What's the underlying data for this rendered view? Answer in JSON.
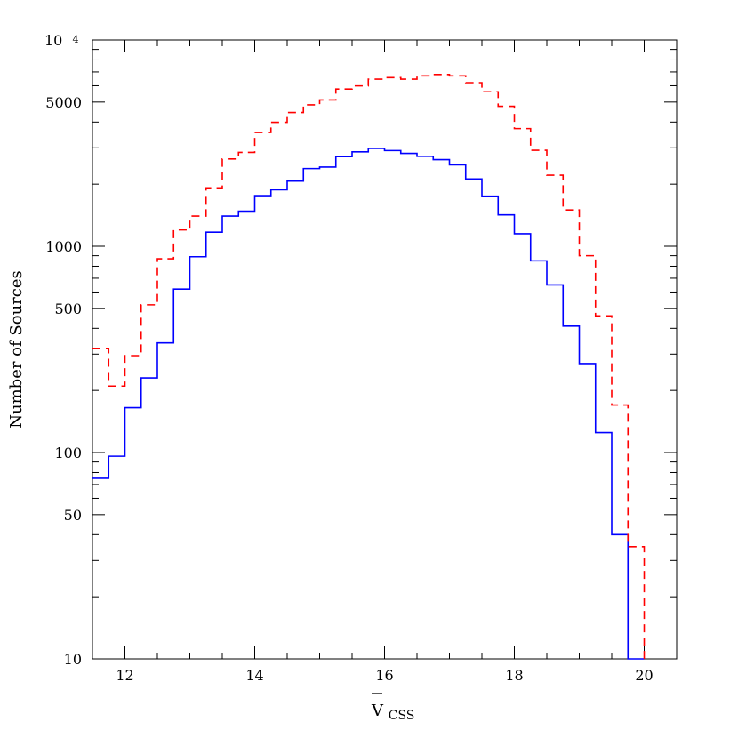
{
  "chart_data": {
    "type": "line",
    "step": true,
    "xlabel_main": "V",
    "xlabel_sub": "CSS",
    "xlabel_overline": true,
    "ylabel": "Number of Sources",
    "xlim": [
      11.5,
      20.5
    ],
    "ylim": [
      10,
      10000
    ],
    "yscale": "log",
    "x_ticks": [
      12,
      14,
      16,
      18,
      20
    ],
    "x_tick_labels": [
      "12",
      "14",
      "16",
      "18",
      "20"
    ],
    "y_ticks": [
      10,
      50,
      100,
      500,
      1000,
      5000
    ],
    "y_tick_labels": [
      "10",
      "50",
      "100",
      "500",
      "1000",
      "5000"
    ],
    "y_top_label_base": "10",
    "y_top_label_exp": "4",
    "x_bin_edges": [
      11.5,
      11.75,
      12.0,
      12.25,
      12.5,
      12.75,
      13.0,
      13.25,
      13.5,
      13.75,
      14.0,
      14.25,
      14.5,
      14.75,
      15.0,
      15.25,
      15.5,
      15.75,
      16.0,
      16.25,
      16.5,
      16.75,
      17.0,
      17.25,
      17.5,
      17.75,
      18.0,
      18.25,
      18.5,
      18.75,
      19.0,
      19.25,
      19.5,
      19.75,
      20.0
    ],
    "series": [
      {
        "style": "solid",
        "color": "#0000ff",
        "values": [
          75,
          96,
          165,
          230,
          340,
          620,
          890,
          1170,
          1400,
          1480,
          1760,
          1880,
          2070,
          2380,
          2420,
          2720,
          2870,
          2980,
          2910,
          2820,
          2730,
          2630,
          2480,
          2120,
          1750,
          1420,
          1150,
          850,
          650,
          410,
          270,
          125,
          40,
          1
        ]
      },
      {
        "style": "dashed",
        "color": "#ff0000",
        "values": [
          320,
          210,
          295,
          520,
          870,
          1200,
          1400,
          1920,
          2650,
          2850,
          3560,
          3990,
          4450,
          4850,
          5120,
          5780,
          5990,
          6460,
          6570,
          6460,
          6700,
          6800,
          6700,
          6210,
          5610,
          4770,
          3720,
          2920,
          2210,
          1500,
          900,
          460,
          170,
          35
        ]
      }
    ]
  }
}
